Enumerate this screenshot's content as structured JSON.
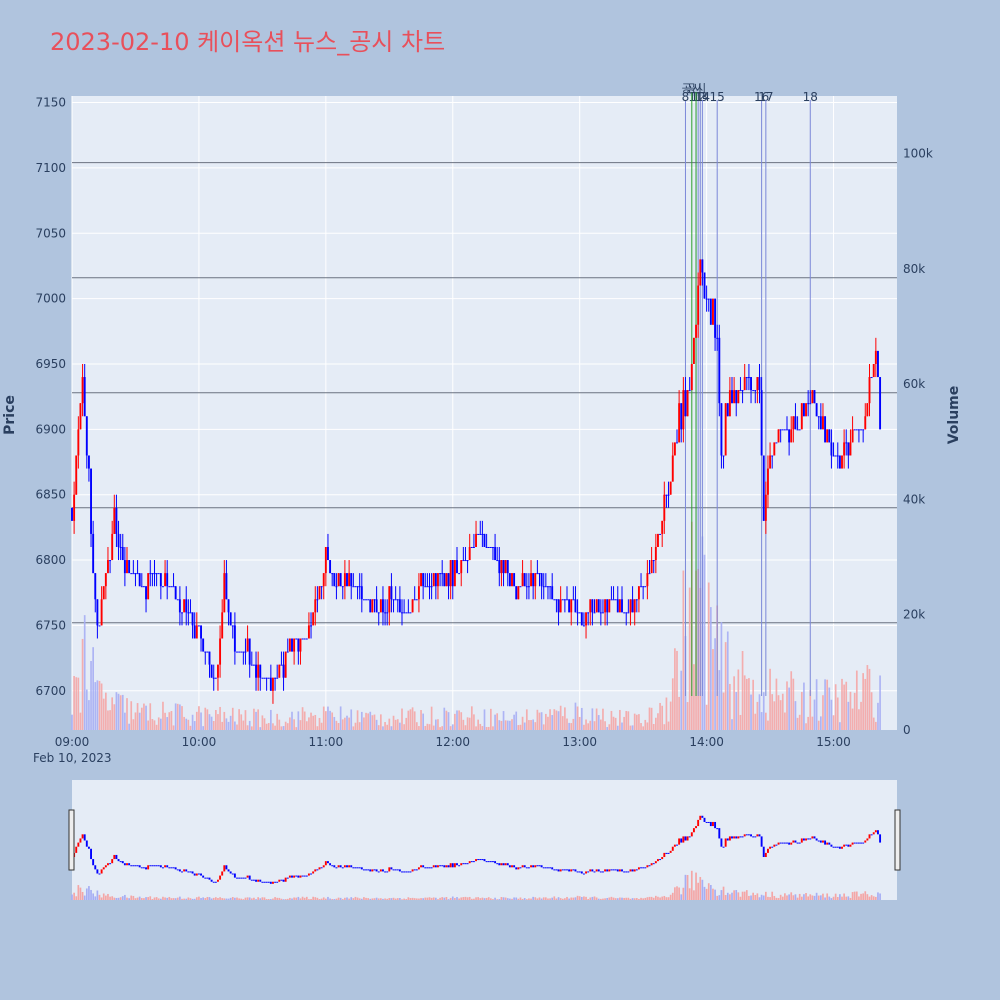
{
  "title": "2023-02-10 케이옥션 뉴스_공시 차트",
  "colors": {
    "page_bg": "#b0c4de",
    "plot_bg": "#e5ecf6",
    "title": "#e8505b",
    "up": "#ff0000",
    "down": "#0000ff",
    "hline": "#6b7280",
    "news_line": "#7b88d8",
    "disclosure_line": "#2ca02c"
  },
  "chart_data": {
    "type": "candlestick+bar",
    "title": "2023-02-10 케이옥션 뉴스_공시 차트",
    "x_axis": {
      "type": "time",
      "range": [
        "2023-02-10 09:00",
        "2023-02-10 15:30"
      ],
      "tick_labels": [
        "09:00",
        "10:00",
        "11:00",
        "12:00",
        "13:00",
        "14:00",
        "15:00"
      ],
      "date_label": "Feb 10, 2023"
    },
    "y_axis_price": {
      "label": "Price",
      "range": [
        6670,
        7155
      ],
      "tick_labels": [
        "6700",
        "6750",
        "6800",
        "6850",
        "6900",
        "6950",
        "7000",
        "7050",
        "7100",
        "7150"
      ]
    },
    "y_axis_volume": {
      "label": "Volume",
      "range": [
        0,
        110000
      ],
      "tick_labels": [
        "0",
        "20k",
        "40k",
        "60k",
        "80k",
        "100k"
      ]
    },
    "horizontal_reference_lines": [
      6752,
      6840,
      6928,
      7016,
      7104
    ],
    "price_path": [
      [
        "09:00",
        6840
      ],
      [
        "09:03",
        6900
      ],
      [
        "09:05",
        6940
      ],
      [
        "09:08",
        6860
      ],
      [
        "09:10",
        6780
      ],
      [
        "09:12",
        6740
      ],
      [
        "09:14",
        6770
      ],
      [
        "09:17",
        6800
      ],
      [
        "09:20",
        6830
      ],
      [
        "09:25",
        6790
      ],
      [
        "09:30",
        6790
      ],
      [
        "09:35",
        6780
      ],
      [
        "09:40",
        6790
      ],
      [
        "09:45",
        6780
      ],
      [
        "09:50",
        6770
      ],
      [
        "09:55",
        6760
      ],
      [
        "10:00",
        6740
      ],
      [
        "10:05",
        6720
      ],
      [
        "10:08",
        6700
      ],
      [
        "10:10",
        6740
      ],
      [
        "10:12",
        6780
      ],
      [
        "10:14",
        6760
      ],
      [
        "10:18",
        6730
      ],
      [
        "10:22",
        6740
      ],
      [
        "10:25",
        6720
      ],
      [
        "10:30",
        6710
      ],
      [
        "10:35",
        6710
      ],
      [
        "10:40",
        6720
      ],
      [
        "10:45",
        6740
      ],
      [
        "10:50",
        6740
      ],
      [
        "10:55",
        6760
      ],
      [
        "11:00",
        6800
      ],
      [
        "11:05",
        6780
      ],
      [
        "11:10",
        6790
      ],
      [
        "11:15",
        6780
      ],
      [
        "11:20",
        6770
      ],
      [
        "11:25",
        6760
      ],
      [
        "11:30",
        6770
      ],
      [
        "11:35",
        6770
      ],
      [
        "11:40",
        6760
      ],
      [
        "11:45",
        6780
      ],
      [
        "11:50",
        6780
      ],
      [
        "11:55",
        6790
      ],
      [
        "12:00",
        6790
      ],
      [
        "12:05",
        6790
      ],
      [
        "12:10",
        6820
      ],
      [
        "12:15",
        6810
      ],
      [
        "12:20",
        6800
      ],
      [
        "12:25",
        6790
      ],
      [
        "12:30",
        6780
      ],
      [
        "12:35",
        6780
      ],
      [
        "12:40",
        6790
      ],
      [
        "12:45",
        6780
      ],
      [
        "12:50",
        6770
      ],
      [
        "12:55",
        6770
      ],
      [
        "13:00",
        6760
      ],
      [
        "13:05",
        6760
      ],
      [
        "13:10",
        6760
      ],
      [
        "13:15",
        6770
      ],
      [
        "13:20",
        6760
      ],
      [
        "13:25",
        6760
      ],
      [
        "13:30",
        6780
      ],
      [
        "13:35",
        6800
      ],
      [
        "13:40",
        6840
      ],
      [
        "13:43",
        6860
      ],
      [
        "13:46",
        6900
      ],
      [
        "13:50",
        6920
      ],
      [
        "13:54",
        6960
      ],
      [
        "13:57",
        7040
      ],
      [
        "14:00",
        7000
      ],
      [
        "14:03",
        6990
      ],
      [
        "14:05",
        6960
      ],
      [
        "14:07",
        6880
      ],
      [
        "14:10",
        6920
      ],
      [
        "14:15",
        6930
      ],
      [
        "14:20",
        6940
      ],
      [
        "14:25",
        6930
      ],
      [
        "14:27",
        6840
      ],
      [
        "14:30",
        6880
      ],
      [
        "14:35",
        6900
      ],
      [
        "14:40",
        6900
      ],
      [
        "14:45",
        6910
      ],
      [
        "14:50",
        6920
      ],
      [
        "14:55",
        6900
      ],
      [
        "15:00",
        6880
      ],
      [
        "15:05",
        6880
      ],
      [
        "15:10",
        6900
      ],
      [
        "15:15",
        6910
      ],
      [
        "15:18",
        6940
      ],
      [
        "15:20",
        6960
      ],
      [
        "15:22",
        6900
      ]
    ],
    "volume_profile": [
      [
        "09:00",
        6000
      ],
      [
        "09:05",
        14000
      ],
      [
        "09:10",
        8000
      ],
      [
        "09:15",
        5000
      ],
      [
        "09:30",
        3000
      ],
      [
        "10:00",
        2500
      ],
      [
        "10:30",
        2000
      ],
      [
        "11:00",
        2500
      ],
      [
        "11:30",
        2000
      ],
      [
        "12:00",
        2500
      ],
      [
        "12:30",
        2000
      ],
      [
        "13:00",
        3000
      ],
      [
        "13:30",
        1500
      ],
      [
        "13:40",
        4000
      ],
      [
        "13:45",
        10000
      ],
      [
        "13:50",
        18000
      ],
      [
        "13:55",
        24000
      ],
      [
        "14:00",
        20000
      ],
      [
        "14:05",
        12000
      ],
      [
        "14:15",
        8000
      ],
      [
        "14:30",
        6000
      ],
      [
        "15:00",
        5000
      ],
      [
        "15:20",
        7000
      ]
    ],
    "news_markers": [
      {
        "label": "8",
        "time": "13:50"
      },
      {
        "label": "11",
        "time": "13:55"
      },
      {
        "label": "12",
        "time": "13:56"
      },
      {
        "label": "13",
        "time": "13:57"
      },
      {
        "label": "14",
        "time": "13:58"
      },
      {
        "label": "15",
        "time": "14:05"
      },
      {
        "label": "16",
        "time": "14:26"
      },
      {
        "label": "17",
        "time": "14:28"
      },
      {
        "label": "18",
        "time": "14:49"
      }
    ],
    "disclosure_markers": [
      {
        "label": "공시",
        "time": "13:53"
      },
      {
        "label": "공시",
        "time": "13:55"
      }
    ]
  }
}
